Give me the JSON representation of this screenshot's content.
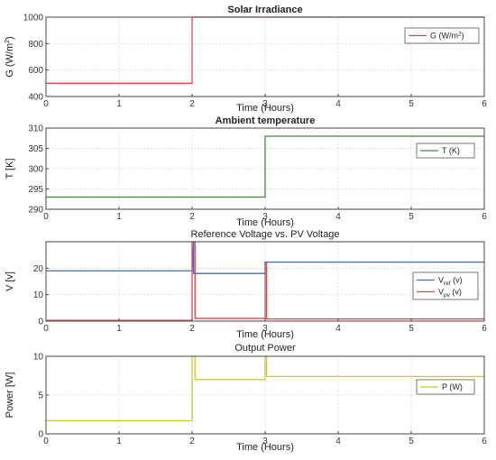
{
  "chart_data": [
    {
      "type": "line",
      "title": "Solar Irradiance",
      "title_bold": true,
      "xlabel": "Time (Hours)",
      "ylabel": "G (W/m²)",
      "ylabel_main": "G (W/m",
      "ylabel_sup": "2",
      "ylabel_tail": ")",
      "xlim": [
        0,
        6
      ],
      "ylim": [
        400,
        1000
      ],
      "xticks": [
        "0",
        "1",
        "2",
        "3",
        "4",
        "5",
        "6"
      ],
      "yticks": [
        "400",
        "600",
        "800",
        "1000"
      ],
      "grid": true,
      "legend_position": "top-right",
      "series": [
        {
          "name": "G (W/m²)",
          "legend_main": "G (W/m",
          "legend_sup": "2",
          "legend_tail": ")",
          "color": "#e8474f",
          "x": [
            0,
            2,
            2,
            6
          ],
          "y": [
            500,
            500,
            1000,
            1000
          ]
        }
      ]
    },
    {
      "type": "line",
      "title": "Ambient temperature",
      "title_bold": true,
      "xlabel": "Time (Hours)",
      "ylabel": "T [K]",
      "xlim": [
        0,
        6
      ],
      "ylim": [
        290,
        310
      ],
      "xticks": [
        "0",
        "1",
        "2",
        "3",
        "4",
        "5",
        "6"
      ],
      "yticks": [
        "290",
        "295",
        "300",
        "305",
        "310"
      ],
      "grid": true,
      "legend_position": "top-right",
      "series": [
        {
          "name": "T (K)",
          "color": "#3a8a3a",
          "x": [
            0,
            3,
            3,
            6
          ],
          "y": [
            293,
            293,
            308,
            308
          ]
        }
      ]
    },
    {
      "type": "line",
      "title": "Reference Voltage vs. PV Voltage",
      "title_bold": false,
      "xlabel": "Time (Hours)",
      "ylabel": "V [v]",
      "xlim": [
        0,
        6
      ],
      "ylim": [
        0,
        30
      ],
      "xticks": [
        "0",
        "1",
        "2",
        "3",
        "4",
        "5",
        "6"
      ],
      "yticks": [
        "0",
        "10",
        "20"
      ],
      "grid": true,
      "legend_position": "bottom-right",
      "series": [
        {
          "name": "Vref (v)",
          "legend_main": "V",
          "legend_sub": "ref",
          "legend_tail": " (v)",
          "color": "#3f6fb4",
          "x": [
            0,
            2,
            2.02,
            2.02,
            3,
            3,
            6
          ],
          "y": [
            19,
            19,
            30,
            18,
            18,
            22.3,
            22.3
          ]
        },
        {
          "name": "Vpv (v)",
          "legend_main": "V",
          "legend_sub": "pv",
          "legend_tail": " (v)",
          "color": "#d64550",
          "x": [
            0,
            2,
            2,
            2.04,
            2.04,
            3,
            3,
            3.02,
            3.02,
            6
          ],
          "y": [
            0.3,
            0.3,
            30,
            30,
            1,
            1,
            22,
            22,
            0.8,
            0.8
          ]
        }
      ]
    },
    {
      "type": "line",
      "title": "Output Power",
      "title_bold": false,
      "xlabel": "Time (Hours)",
      "ylabel": "Power [W]",
      "xlim": [
        0,
        6
      ],
      "ylim": [
        0,
        10
      ],
      "xticks": [
        "0",
        "1",
        "2",
        "3",
        "4",
        "5",
        "6"
      ],
      "yticks": [
        "0",
        "5",
        "10"
      ],
      "grid": true,
      "legend_position": "top-right",
      "series": [
        {
          "name": "P (W)",
          "color": "#c8c83a",
          "x": [
            0,
            2,
            2,
            2.04,
            2.04,
            3,
            3,
            3.02,
            3.02,
            6
          ],
          "y": [
            1.7,
            1.7,
            10,
            10,
            7,
            7,
            10,
            10,
            7.4,
            7.4
          ]
        }
      ]
    }
  ]
}
